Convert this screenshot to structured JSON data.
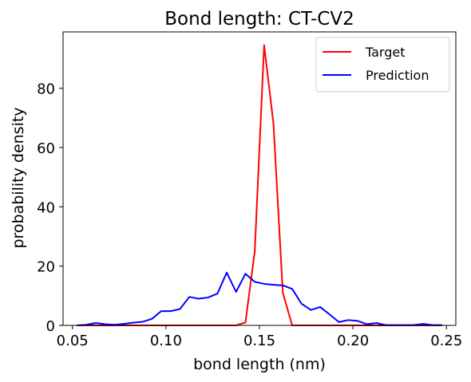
{
  "chart_data": {
    "type": "line",
    "title": "Bond length: CT-CV2",
    "xlabel": "bond length (nm)",
    "ylabel": "probability density",
    "xlim": [
      0.045,
      0.255
    ],
    "ylim": [
      0,
      99
    ],
    "xticks": [
      0.05,
      0.1,
      0.15,
      0.2,
      0.25
    ],
    "xtick_labels": [
      "0.05",
      "0.10",
      "0.15",
      "0.20",
      "0.25"
    ],
    "yticks": [
      0,
      20,
      40,
      60,
      80
    ],
    "ytick_labels": [
      "0",
      "20",
      "40",
      "60",
      "80"
    ],
    "grid": false,
    "legend_position": "top-right",
    "series": [
      {
        "name": "Target",
        "color": "#ff0000",
        "x": [
          0.0525,
          0.0575,
          0.0625,
          0.0675,
          0.0725,
          0.0775,
          0.0825,
          0.0875,
          0.0925,
          0.0975,
          0.1025,
          0.1075,
          0.1125,
          0.1175,
          0.1225,
          0.1275,
          0.1325,
          0.1375,
          0.1425,
          0.1475,
          0.1525,
          0.1575,
          0.1625,
          0.1675,
          0.1725,
          0.1775,
          0.1825,
          0.1875,
          0.1925,
          0.1975,
          0.2025,
          0.2075,
          0.2125,
          0.2175,
          0.2225,
          0.2275,
          0.2325,
          0.2375,
          0.2425,
          0.2475
        ],
        "y": [
          0,
          0,
          0,
          0,
          0,
          0,
          0,
          0,
          0,
          0,
          0,
          0,
          0,
          0,
          0,
          0,
          0,
          0,
          1,
          25,
          94.5,
          68,
          11,
          0,
          0,
          0,
          0,
          0,
          0,
          0,
          0,
          0,
          0,
          0,
          0,
          0,
          0,
          0,
          0,
          0
        ]
      },
      {
        "name": "Prediction",
        "color": "#0000ff",
        "x": [
          0.0525,
          0.0575,
          0.0625,
          0.0675,
          0.0725,
          0.0775,
          0.0825,
          0.0875,
          0.0925,
          0.0975,
          0.1025,
          0.1075,
          0.1125,
          0.1175,
          0.1225,
          0.1275,
          0.1325,
          0.1375,
          0.1425,
          0.1475,
          0.1525,
          0.1575,
          0.1625,
          0.1675,
          0.1725,
          0.1775,
          0.1825,
          0.1875,
          0.1925,
          0.1975,
          0.2025,
          0.2075,
          0.2125,
          0.2175,
          0.2225,
          0.2275,
          0.2325,
          0.2375,
          0.2425,
          0.2475
        ],
        "y": [
          0,
          0.2,
          0.8,
          0.4,
          0.2,
          0.5,
          0.9,
          1.2,
          2.2,
          4.8,
          4.8,
          5.5,
          9.6,
          9.0,
          9.4,
          10.7,
          17.8,
          11.3,
          17.4,
          14.7,
          14.0,
          13.7,
          13.5,
          12.3,
          7.3,
          5.2,
          6.2,
          3.7,
          1.1,
          1.8,
          1.5,
          0.4,
          0.8,
          0.1,
          0.1,
          0.1,
          0.1,
          0.5,
          0.1,
          0.1
        ]
      }
    ]
  }
}
